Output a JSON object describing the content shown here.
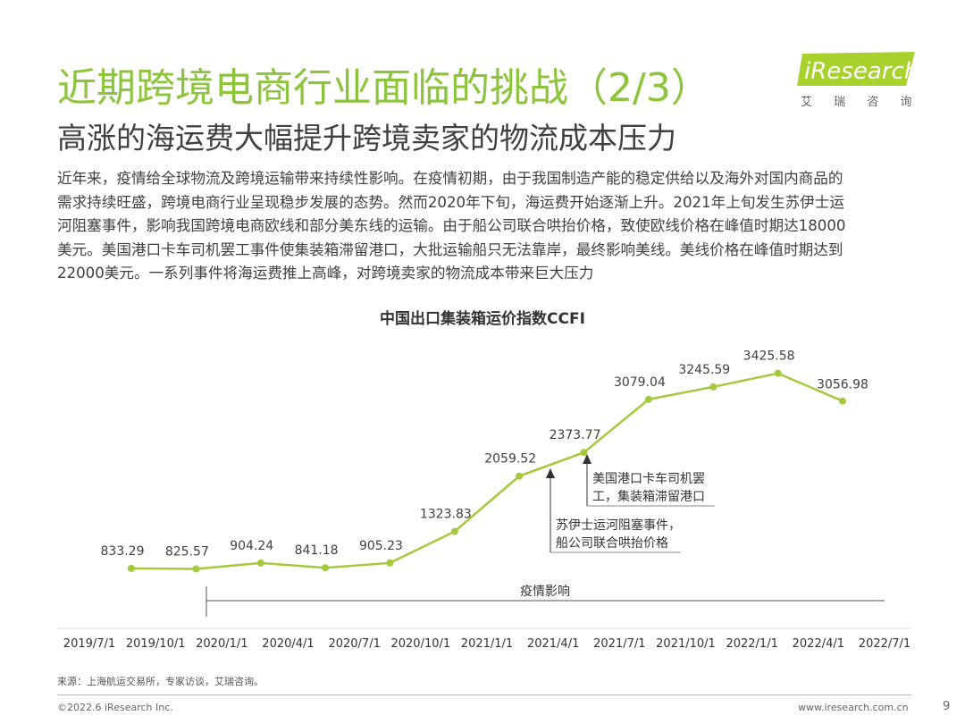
{
  "header": {
    "title": "近期跨境电商行业面临的挑战（2/3）",
    "subtitle": "高涨的海运费大幅提升跨境卖家的物流成本压力",
    "logo": "iResearch",
    "logo_sub": "艾 瑞 咨 询"
  },
  "body": {
    "lines": [
      "近年来，疫情给全球物流及跨境运输带来持续性影响。在疫情初期，由于我国制造产能的稳定供给以及海外对国内商品的",
      "需求持续旺盛，跨境电商行业呈现稳步发展的态势。然而2020年下旬，海运费开始逐渐上升。2021年上旬发生苏伊士运",
      "河阻塞事件，影响我国跨境电商欧线和部分美东线的运输。由于船公司联合哄抬价格，致使欧线价格在峰值时期达18000",
      "美元。美国港口卡车司机罢工事件使集装箱滞留港口，大批运输船只无法靠岸，最终影响美线。美线价格在峰值时期达到",
      "22000美元。一系列事件将海运费推上高峰，对跨境卖家的物流成本带来巨大压力"
    ]
  },
  "chart_data": {
    "type": "line",
    "title": "中国出口集装箱运价指数CCFI",
    "xticks": [
      "2019/7/1",
      "2019/10/1",
      "2020/1/1",
      "2020/4/1",
      "2020/7/1",
      "2020/10/1",
      "2021/1/1",
      "2021/4/1",
      "2021/7/1",
      "2021/10/1",
      "2022/1/1",
      "2022/4/1",
      "2022/7/1"
    ],
    "values": [
      833.29,
      825.57,
      904.24,
      841.18,
      905.23,
      1323.83,
      2059.52,
      2373.77,
      3079.04,
      3245.59,
      3425.58,
      3056.98
    ],
    "color": "#a5c93d",
    "ylim": [
      0,
      3600
    ],
    "annotations": {
      "pandemic": "疫情影响",
      "suez": [
        "苏伊士运河阻塞事件，",
        "船公司联合哄抬价格"
      ],
      "us_port": [
        "美国港口卡车司机罢",
        "工，集装箱滞留港口"
      ]
    }
  },
  "footer": {
    "source": "来源：上海航运交易所，专家访谈，艾瑞咨询。",
    "copyright": "©2022.6 iResearch Inc.",
    "site": "www.iresearch.com.cn",
    "page": "9"
  }
}
